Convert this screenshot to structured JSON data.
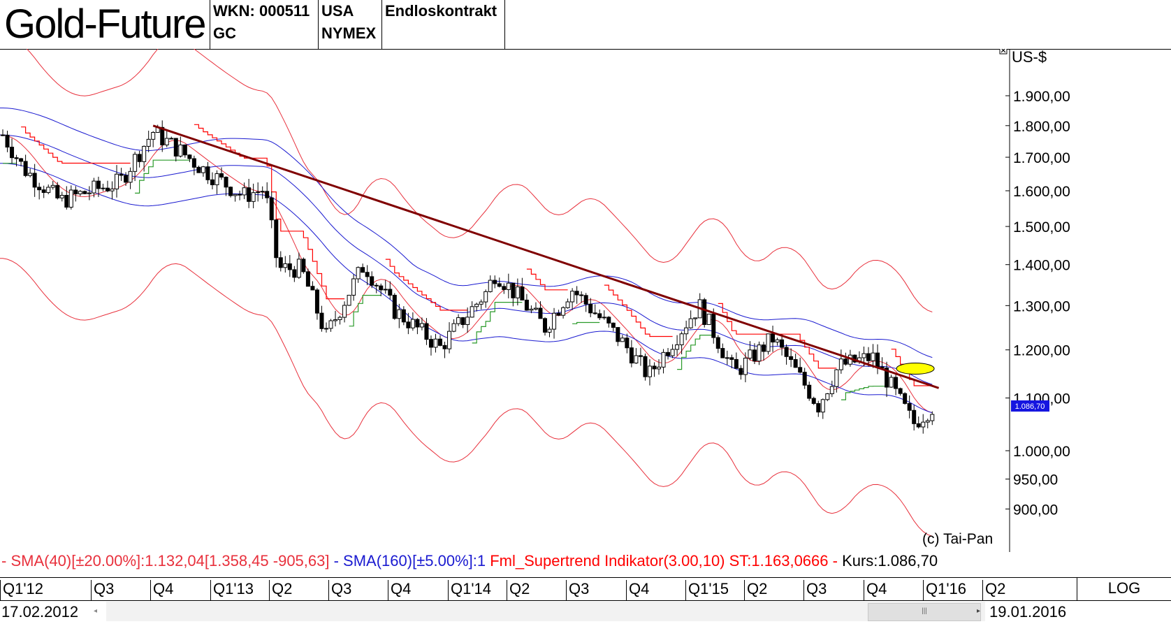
{
  "header": {
    "title": "Gold-Future",
    "wkn": "WKN: 000511",
    "symbol": "GC",
    "country": "USA",
    "exchange": "NYMEX",
    "contract": "Endloskontrakt"
  },
  "chart": {
    "unit": "US-$",
    "copyright": "(c) Tai-Pan",
    "close_icon": "close-icon",
    "price_badge": "1.086,70",
    "y_ticks": [
      {
        "v": 1900,
        "label": "1.900,00"
      },
      {
        "v": 1800,
        "label": "1.800,00"
      },
      {
        "v": 1700,
        "label": "1.700,00"
      },
      {
        "v": 1600,
        "label": "1.600,00"
      },
      {
        "v": 1500,
        "label": "1.500,00"
      },
      {
        "v": 1400,
        "label": "1.400,00"
      },
      {
        "v": 1300,
        "label": "1.300,00"
      },
      {
        "v": 1200,
        "label": "1.200,00"
      },
      {
        "v": 1100,
        "label": "1.100,00"
      },
      {
        "v": 1000,
        "label": "1.000,00"
      },
      {
        "v": 950,
        "label": "950,00"
      },
      {
        "v": 900,
        "label": "900,00"
      }
    ]
  },
  "legend": {
    "sma40": "- SMA(40)[±20.00%]:1.132,04[1.358,45 -905,63]",
    "sma160": " - SMA(160)[±5.00%]:1",
    "supertrend": " Fml_Supertrend Indikator(3.00,10) ST:1.163,0666 -",
    "kurs": " Kurs:1.086,70"
  },
  "quarters": [
    "Q1'12",
    "Q3",
    "Q4",
    "Q1'13",
    "Q2",
    "Q3",
    "Q4",
    "Q1'14",
    "Q2",
    "Q3",
    "Q4",
    "Q1'15",
    "Q2",
    "Q3",
    "Q4",
    "Q1'16",
    "Q2"
  ],
  "log_button": "LOG",
  "dates": {
    "start": "17.02.2012",
    "end": "19.01.2016"
  },
  "colors": {
    "candle": "#000000",
    "sma40_band": "#e8303c",
    "sma160_band": "#1a1ad0",
    "supertrend": "#ff0000",
    "supertrend_green": "#2a9a2a",
    "trendline": "#800000",
    "highlight": "#ffff00",
    "badge": "#1515e0"
  },
  "chart_data": {
    "type": "candlestick",
    "title": "Gold-Future",
    "ylabel": "US-$",
    "scale": "log",
    "ylim": [
      880,
      1960
    ],
    "x_range": [
      "2012-02-17",
      "2016-01-19"
    ],
    "last_close": 1086.7,
    "close_path": [
      [
        "2012-02-17",
        1770
      ],
      [
        "2012-03-20",
        1665
      ],
      [
        "2012-05-15",
        1570
      ],
      [
        "2012-07-01",
        1600
      ],
      [
        "2012-08-15",
        1625
      ],
      [
        "2012-10-05",
        1780
      ],
      [
        "2012-11-15",
        1720
      ],
      [
        "2012-12-20",
        1665
      ],
      [
        "2013-02-20",
        1585
      ],
      [
        "2013-03-25",
        1605
      ],
      [
        "2013-04-15",
        1390
      ],
      [
        "2013-05-20",
        1390
      ],
      [
        "2013-06-28",
        1230
      ],
      [
        "2013-08-25",
        1400
      ],
      [
        "2013-10-10",
        1290
      ],
      [
        "2013-12-20",
        1205
      ],
      [
        "2014-02-28",
        1330
      ],
      [
        "2014-03-15",
        1380
      ],
      [
        "2014-05-30",
        1250
      ],
      [
        "2014-07-10",
        1340
      ],
      [
        "2014-09-30",
        1210
      ],
      [
        "2014-11-05",
        1145
      ],
      [
        "2015-01-22",
        1300
      ],
      [
        "2015-03-17",
        1150
      ],
      [
        "2015-05-15",
        1225
      ],
      [
        "2015-07-24",
        1085
      ],
      [
        "2015-08-24",
        1165
      ],
      [
        "2015-10-15",
        1185
      ],
      [
        "2015-12-17",
        1050
      ],
      [
        "2016-01-19",
        1086.7
      ]
    ],
    "indicators": {
      "sma40": {
        "value": 1132.04,
        "band_pct": 20,
        "upper": 1358.45,
        "lower": 905.63
      },
      "sma160": {
        "band_pct": 5
      },
      "supertrend": {
        "params": [
          3.0,
          10
        ],
        "value": 1163.0666
      }
    },
    "trendline": {
      "from": [
        "2012-10-05",
        1800
      ],
      "to": [
        "2016-01-25",
        1120
      ]
    }
  }
}
